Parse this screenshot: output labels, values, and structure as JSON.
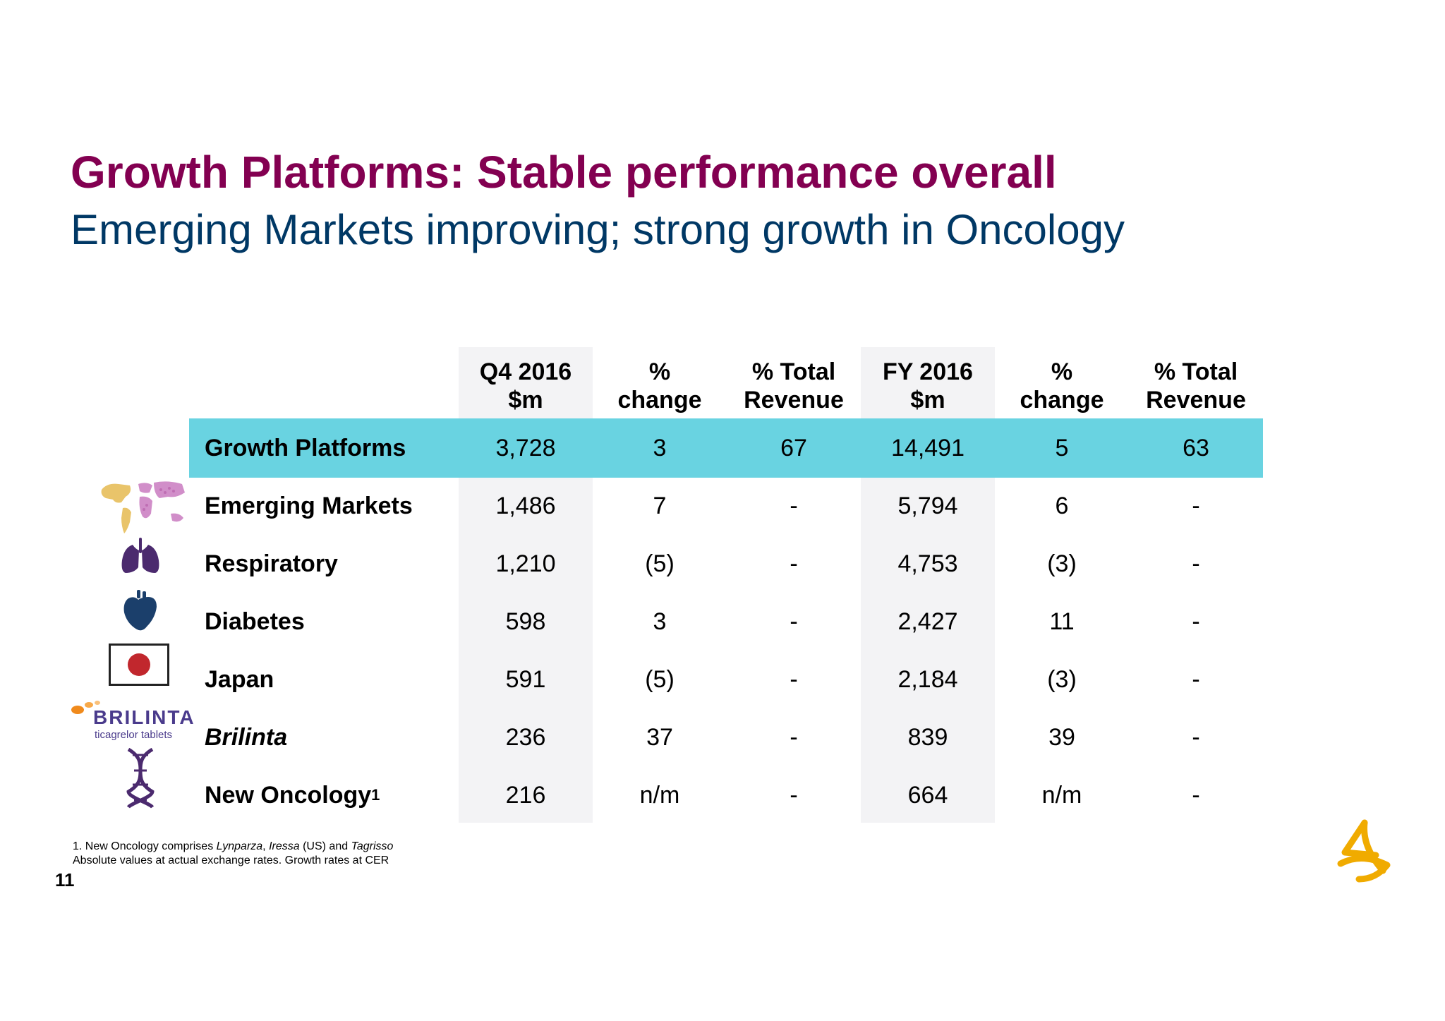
{
  "slide": {
    "title": "Growth Platforms: Stable performance overall",
    "subtitle": "Emerging Markets improving; strong growth in Oncology",
    "page_number": "11",
    "accent_title_color": "#830051",
    "accent_subtitle_color": "#003865",
    "highlight_row_color": "#69d3e1"
  },
  "table": {
    "headers": [
      {
        "line1": "Q4 2016",
        "line2": "$m"
      },
      {
        "line1": "%",
        "line2": "change"
      },
      {
        "line1": "% Total",
        "line2": "Revenue"
      },
      {
        "line1": "FY 2016",
        "line2": "$m"
      },
      {
        "line1": "%",
        "line2": "change"
      },
      {
        "line1": "% Total",
        "line2": "Revenue"
      }
    ],
    "rows": [
      {
        "label": "Growth Platforms",
        "icon": "none",
        "values": [
          "3,728",
          "3",
          "67",
          "14,491",
          "5",
          "63"
        ]
      },
      {
        "label": "Emerging Markets",
        "icon": "world-map-icon",
        "values": [
          "1,486",
          "7",
          "-",
          "5,794",
          "6",
          "-"
        ]
      },
      {
        "label": "Respiratory",
        "icon": "lungs-icon",
        "values": [
          "1,210",
          "(5)",
          "-",
          "4,753",
          "(3)",
          "-"
        ]
      },
      {
        "label": "Diabetes",
        "icon": "heart-icon",
        "values": [
          "598",
          "3",
          "-",
          "2,427",
          "11",
          "-"
        ]
      },
      {
        "label": "Japan",
        "icon": "japan-flag-icon",
        "values": [
          "591",
          "(5)",
          "-",
          "2,184",
          "(3)",
          "-"
        ]
      },
      {
        "label": "Brilinta",
        "icon": "brilinta-logo",
        "values": [
          "236",
          "37",
          "-",
          "839",
          "39",
          "-"
        ]
      },
      {
        "label": "New Oncology",
        "label_sup": "1",
        "icon": "dna-icon",
        "values": [
          "216",
          "n/m",
          "-",
          "664",
          "n/m",
          "-"
        ]
      }
    ]
  },
  "logos": {
    "brilinta_word": "BRILINTA",
    "brilinta_sub": "ticagrelor tablets"
  },
  "footnotes": {
    "line1_prefix": "1. New Oncology comprises ",
    "line1_drug1": "Lynparza",
    "line1_sep1": ", ",
    "line1_drug2": "Iressa",
    "line1_mid": " (US) and ",
    "line1_drug3": "Tagrisso",
    "line2": "Absolute values at actual exchange rates. Growth rates at CER"
  }
}
